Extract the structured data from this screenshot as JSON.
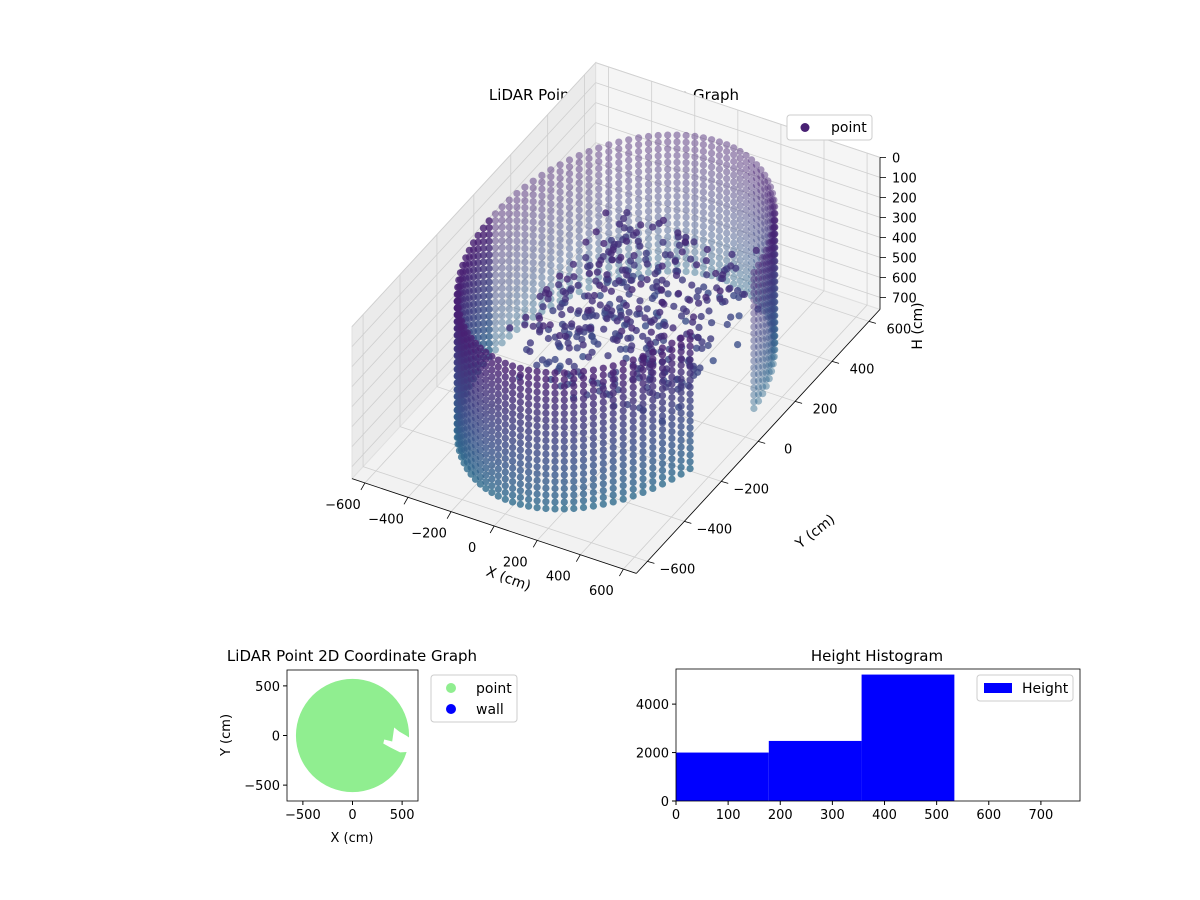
{
  "chart_data": [
    {
      "type": "scatter",
      "projection": "3d",
      "title": "LiDAR Point 3D Coordinate Graph",
      "xlabel": "X (cm)",
      "ylabel": "Y (cm)",
      "zlabel": "H (cm)",
      "xlim": [
        -660,
        660
      ],
      "ylim": [
        -660,
        660
      ],
      "zlim": [
        0,
        760
      ],
      "zaxis_inverted": true,
      "xticks": [
        "−600",
        "−400",
        "−200",
        "0",
        "200",
        "400",
        "600"
      ],
      "yticks": [
        "−600",
        "−400",
        "−200",
        "0",
        "200",
        "400",
        "600"
      ],
      "zticks": [
        "0",
        "100",
        "200",
        "300",
        "400",
        "500",
        "600",
        "700"
      ],
      "grid": true,
      "legend": {
        "placement": "top-right",
        "entries": [
          {
            "label": "point",
            "color": "#482173"
          }
        ]
      },
      "colormap": "viridis",
      "shapes": [
        {
          "name": "cylindrical wall",
          "kind": "ring",
          "radius": 560,
          "h_from": 0,
          "h_to": 760,
          "gap_degrees": [
            -18,
            8
          ]
        },
        {
          "name": "inner structure",
          "kind": "patch",
          "x_range": [
            -250,
            450
          ],
          "y_range": [
            -300,
            300
          ],
          "h_range": [
            150,
            500
          ]
        }
      ]
    },
    {
      "type": "scatter",
      "title": "LiDAR Point 2D Coordinate Graph",
      "xlabel": "X (cm)",
      "ylabel": "Y (cm)",
      "xlim": [
        -660,
        660
      ],
      "ylim": [
        -660,
        660
      ],
      "xticks": [
        -500,
        0,
        500
      ],
      "yticks": [
        -500,
        0,
        500
      ],
      "xticklabels": [
        "−500",
        "0",
        "500"
      ],
      "yticklabels": [
        "−500",
        "0",
        "500"
      ],
      "legend": {
        "placement": "outside-right",
        "entries": [
          {
            "label": "point",
            "color": "#90ee90"
          },
          {
            "label": "wall",
            "color": "#0000ff"
          }
        ]
      },
      "region": {
        "shape": "disk",
        "center": [
          0,
          0
        ],
        "radius": 570,
        "color": "#90ee90"
      },
      "notch": [
        [
          320,
          -40
        ],
        [
          400,
          -60
        ],
        [
          420,
          80
        ],
        [
          470,
          40
        ],
        [
          540,
          0
        ],
        [
          660,
          -80
        ],
        [
          660,
          -160
        ],
        [
          480,
          -170
        ],
        [
          380,
          -120
        ],
        [
          310,
          -80
        ]
      ]
    },
    {
      "type": "bar",
      "histogram": true,
      "title": "Height Histogram",
      "xlim": [
        0,
        775
      ],
      "ylim": [
        0,
        5450
      ],
      "xticks": [
        0,
        100,
        200,
        300,
        400,
        500,
        600,
        700
      ],
      "yticks": [
        0,
        2000,
        4000
      ],
      "bins": [
        {
          "from": 0,
          "to": 178,
          "count": 2000
        },
        {
          "from": 178,
          "to": 356,
          "count": 2480
        },
        {
          "from": 356,
          "to": 534,
          "count": 5220
        }
      ],
      "color": "#0000ff",
      "legend": {
        "placement": "top-right",
        "entries": [
          {
            "label": "Height",
            "color": "#0000ff"
          }
        ]
      }
    }
  ]
}
